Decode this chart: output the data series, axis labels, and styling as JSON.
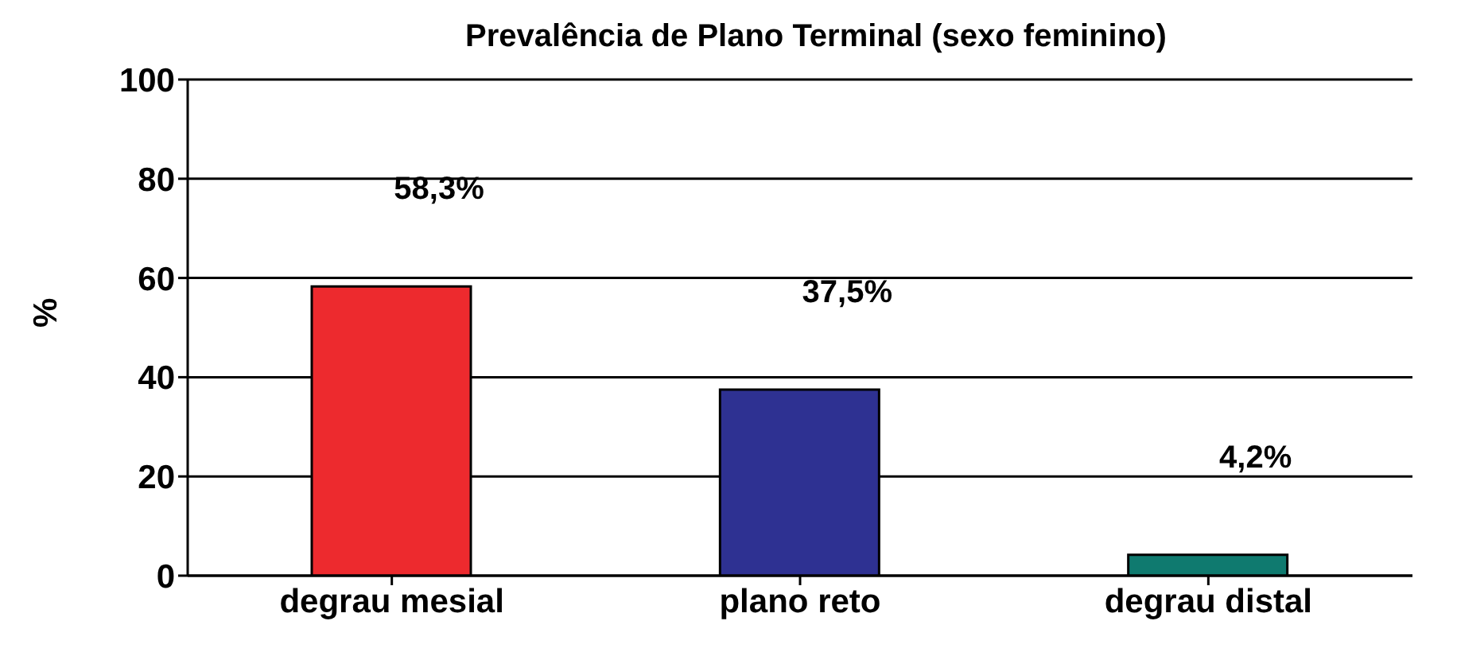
{
  "chart_data": {
    "type": "bar",
    "title": "Prevalência de Plano Terminal (sexo feminino)",
    "ylabel": "%",
    "categories": [
      "degrau mesial",
      "plano reto",
      "degrau distal"
    ],
    "values": [
      58.3,
      37.5,
      4.2
    ],
    "colors": [
      "#ed2a2e",
      "#2e3192",
      "#0f7a6f"
    ],
    "value_labels": [
      "58,3%",
      "37,5%",
      "4,2%"
    ],
    "ylim": [
      0,
      100
    ],
    "yticks": [
      0,
      20,
      40,
      60,
      80,
      100
    ],
    "grid": "y"
  }
}
